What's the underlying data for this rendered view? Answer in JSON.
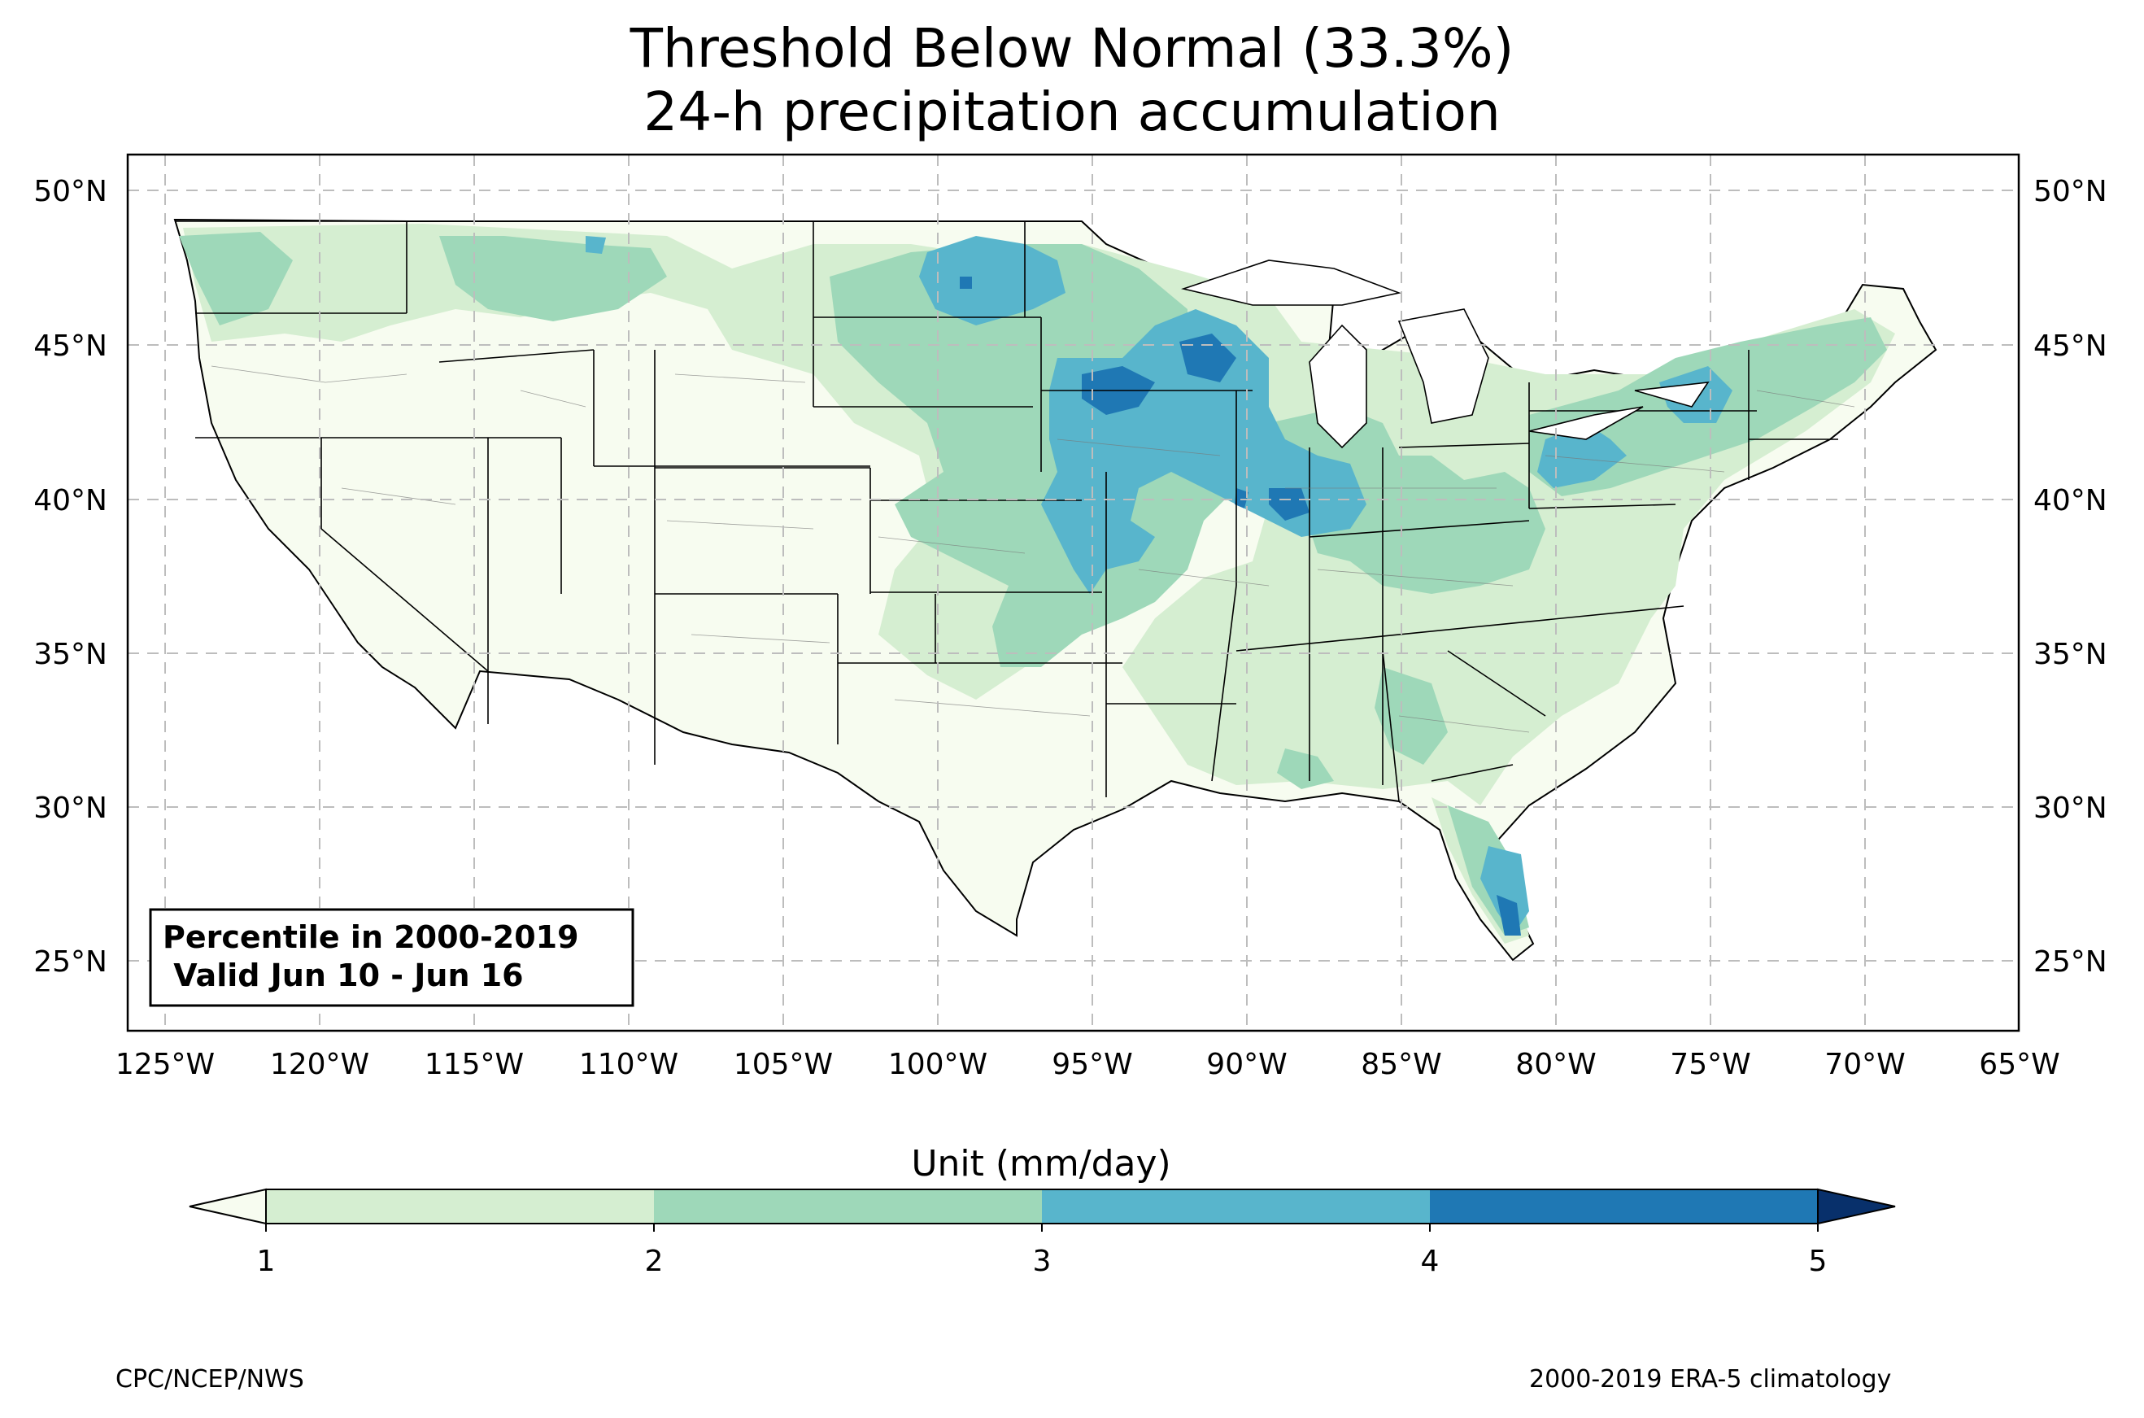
{
  "title": {
    "line1": "Threshold Below Normal (33.3%)",
    "line2": "24-h precipitation accumulation"
  },
  "map": {
    "lat_labels": [
      "50°N",
      "45°N",
      "40°N",
      "35°N",
      "30°N",
      "25°N"
    ],
    "lon_labels": [
      "125°W",
      "120°W",
      "115°W",
      "110°W",
      "105°W",
      "100°W",
      "95°W",
      "90°W",
      "85°W",
      "80°W",
      "75°W",
      "70°W",
      "65°W"
    ],
    "lat_range": [
      23,
      51.2
    ],
    "lon_range": [
      -126.2,
      -65.1
    ],
    "inset_box": {
      "line1": "Percentile in 2000-2019",
      "line2": " Valid Jun 10 - Jun 16"
    }
  },
  "colorbar": {
    "title": "Unit (mm/day)",
    "ticks": [
      "1",
      "2",
      "3",
      "4",
      "5"
    ],
    "colors": [
      "#f7fcf0",
      "#d5eed1",
      "#9ed8b9",
      "#58b5cc",
      "#1f78b4",
      "#08306b"
    ]
  },
  "footer": {
    "left": "CPC/NCEP/NWS",
    "right": "2000-2019 ERA-5 climatology"
  }
}
